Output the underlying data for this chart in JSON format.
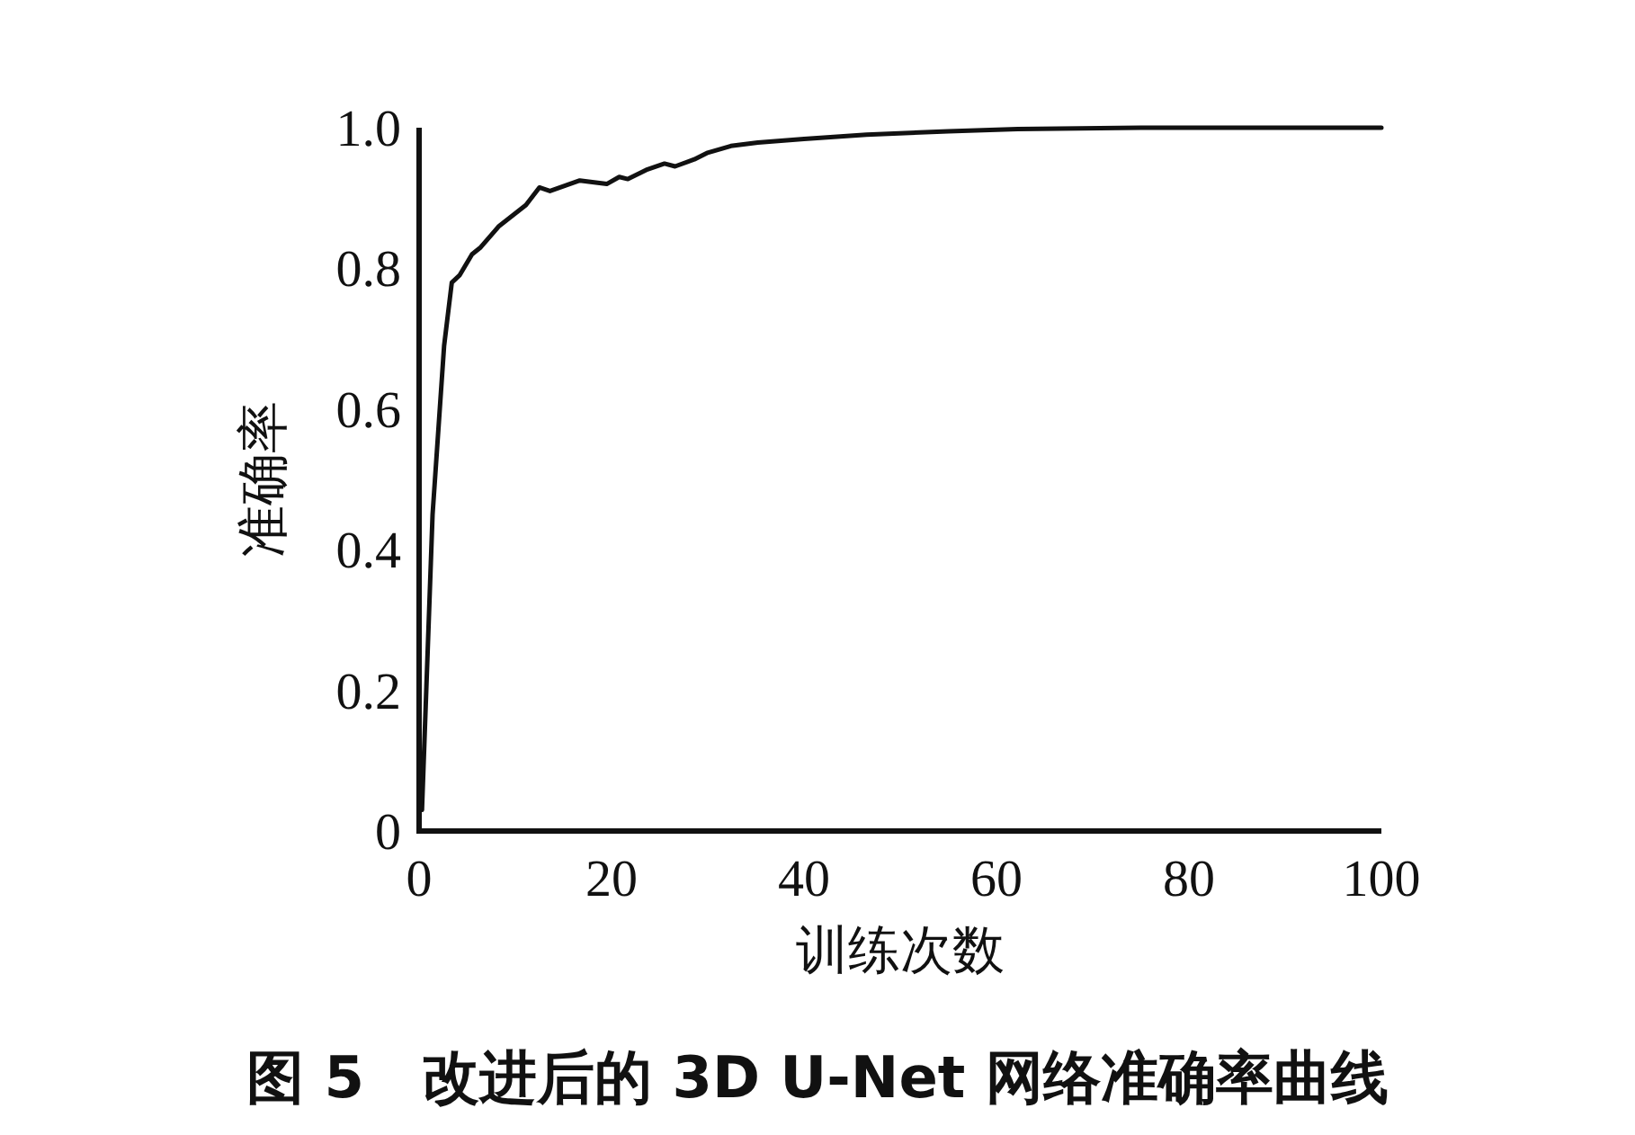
{
  "chart_data": {
    "type": "line",
    "xlabel": "训练次数",
    "ylabel": "准确率",
    "annotations": [
      "图 5　改进后的 3D U-Net 网络准确率曲线"
    ],
    "x": [
      0.3,
      1.4,
      2.6,
      3.4,
      4.2,
      5.5,
      6.4,
      8.3,
      11.1,
      12.5,
      13.6,
      16.7,
      19.5,
      20.8,
      21.7,
      23.6,
      25.5,
      26.6,
      28.6,
      29.9,
      32.4,
      35.2,
      40,
      46.5,
      55,
      62.2,
      75,
      100
    ],
    "series": [
      {
        "color": "#111111",
        "values": [
          0.03,
          0.45,
          0.69,
          0.78,
          0.79,
          0.82,
          0.83,
          0.86,
          0.89,
          0.915,
          0.91,
          0.925,
          0.92,
          0.93,
          0.927,
          0.94,
          0.949,
          0.945,
          0.955,
          0.964,
          0.974,
          0.979,
          0.984,
          0.99,
          0.995,
          0.998,
          1.0,
          1.0
        ]
      }
    ],
    "xlim": [
      0,
      100
    ],
    "ylim": [
      0,
      1
    ],
    "xticks": [
      0,
      20,
      40,
      60,
      80,
      100
    ],
    "yticks": [
      0,
      {
        "value": 0.2,
        "label": "0.2"
      },
      {
        "value": 0.4,
        "label": "0.4"
      },
      {
        "value": 0.6,
        "label": "0.6"
      },
      {
        "value": 0.8,
        "label": "0.8"
      },
      {
        "value": 1,
        "label": "1.0"
      }
    ],
    "grid": false,
    "marker": "none",
    "line_style": "solid"
  }
}
